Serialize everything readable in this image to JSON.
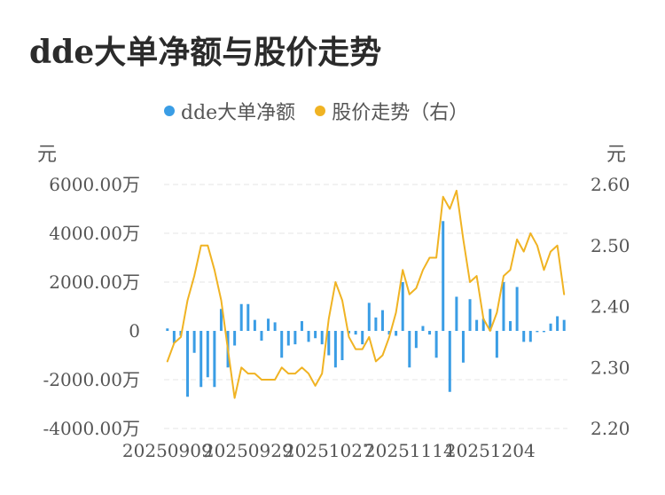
{
  "title": "dde大单净额与股价走势",
  "legend": [
    {
      "label": "dde大单净额",
      "color": "#3a9de5"
    },
    {
      "label": "股价走势（右）",
      "color": "#f0b323"
    }
  ],
  "left_unit": "元",
  "right_unit": "元",
  "chart_data": {
    "type": "bar",
    "title": "dde大单净额与股价走势",
    "left_axis": {
      "unit": "元",
      "ylim": [
        -4000,
        6000
      ],
      "ticks": [
        6000,
        4000,
        2000,
        0,
        -2000,
        -4000
      ],
      "tick_labels": [
        "6000.00万",
        "4000.00万",
        "2000.00万",
        "0",
        "-2000.00万",
        "-4000.00万"
      ]
    },
    "right_axis": {
      "unit": "元",
      "ylim": [
        2.2,
        2.6
      ],
      "ticks": [
        2.6,
        2.5,
        2.4,
        2.3,
        2.2
      ],
      "tick_labels": [
        "2.60",
        "2.50",
        "2.40",
        "2.30",
        "2.20"
      ]
    },
    "x_tick_labels": [
      "20250909",
      "20250929",
      "20251027",
      "20251114",
      "20251204"
    ],
    "x_tick_indices": [
      0,
      12,
      24,
      36,
      48
    ],
    "grid": true,
    "legend_position": "top",
    "series": [
      {
        "name": "dde大单净额",
        "type": "bar",
        "axis": "left",
        "color": "#3a9de5",
        "values": [
          100,
          -500,
          -200,
          -2700,
          -900,
          -2300,
          -1900,
          -2300,
          900,
          -1500,
          -600,
          1100,
          1100,
          450,
          -400,
          500,
          350,
          -1100,
          -600,
          -550,
          400,
          -450,
          -300,
          -550,
          -1000,
          -1500,
          -1200,
          -100,
          -150,
          -550,
          1150,
          550,
          850,
          -150,
          -200,
          2000,
          -1500,
          -700,
          200,
          -150,
          -1100,
          4500,
          -2500,
          1400,
          -1300,
          1300,
          450,
          500,
          900,
          -1100,
          2000,
          400,
          1800,
          -450,
          -450,
          -50,
          -50,
          300,
          600,
          450
        ]
      },
      {
        "name": "股价走势（右）",
        "type": "line",
        "axis": "right",
        "color": "#f0b323",
        "values": [
          2.31,
          2.34,
          2.35,
          2.41,
          2.45,
          2.5,
          2.5,
          2.46,
          2.41,
          2.33,
          2.25,
          2.3,
          2.29,
          2.29,
          2.28,
          2.28,
          2.28,
          2.3,
          2.29,
          2.29,
          2.3,
          2.29,
          2.27,
          2.29,
          2.38,
          2.44,
          2.41,
          2.35,
          2.33,
          2.33,
          2.35,
          2.31,
          2.32,
          2.35,
          2.39,
          2.46,
          2.42,
          2.43,
          2.46,
          2.48,
          2.48,
          2.58,
          2.56,
          2.59,
          2.51,
          2.44,
          2.45,
          2.38,
          2.36,
          2.39,
          2.45,
          2.46,
          2.51,
          2.49,
          2.52,
          2.5,
          2.46,
          2.49,
          2.5,
          2.42
        ]
      }
    ]
  }
}
